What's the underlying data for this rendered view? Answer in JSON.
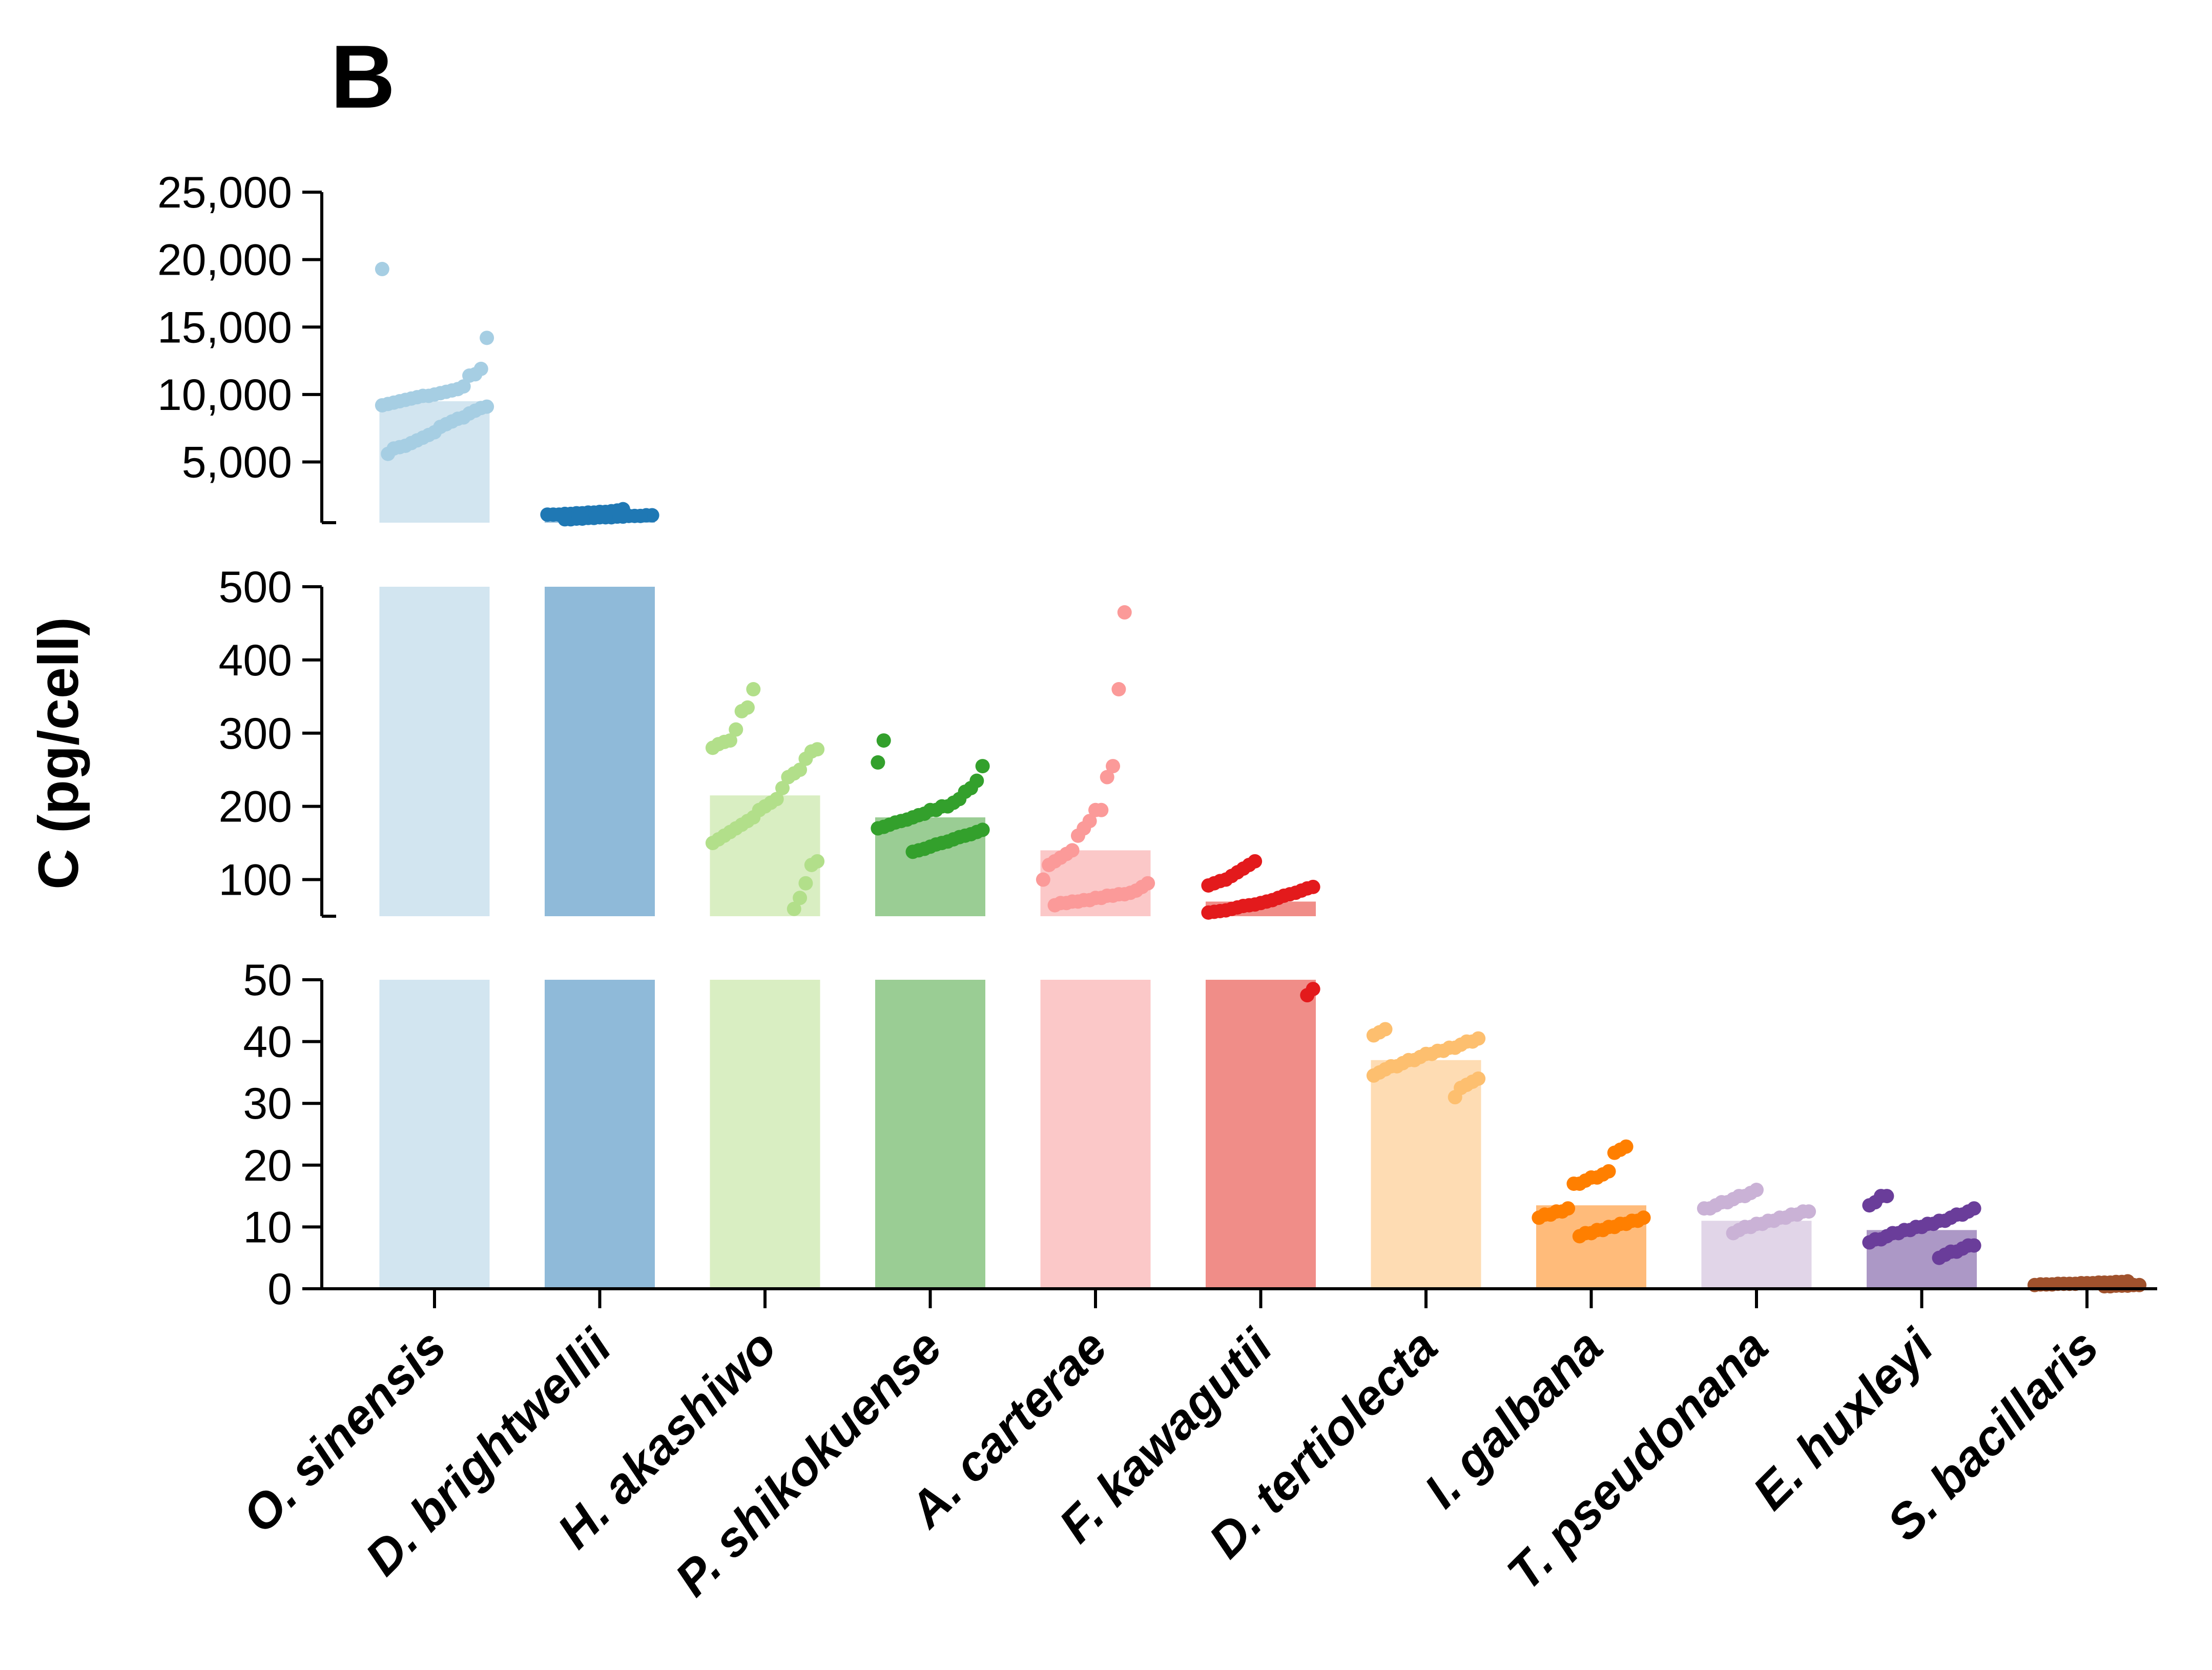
{
  "panel_label": "B",
  "chart_data": {
    "type": "bar",
    "title": "",
    "xlabel": "",
    "ylabel": "C (pg/cell)",
    "broken_axis": true,
    "segments": [
      {
        "range": [
          50,
          500
        ],
        "ticks": [
          100,
          200,
          300,
          400,
          500
        ],
        "tick_labels": [
          "100",
          "200",
          "300",
          "400",
          "500"
        ]
      },
      {
        "range": [
          500,
          25000
        ],
        "ticks": [
          5000,
          10000,
          15000,
          20000,
          25000
        ],
        "tick_labels": [
          "5,000",
          "10,000",
          "15,000",
          "20,000",
          "25,000"
        ]
      }
    ],
    "base_segment": {
      "range": [
        0,
        50
      ],
      "ticks": [
        0,
        10,
        20,
        30,
        40,
        50
      ],
      "tick_labels": [
        "0",
        "10",
        "20",
        "30",
        "40",
        "50"
      ]
    },
    "categories": [
      "O. sinensis",
      "D. brightwellii",
      "H. akashiwo",
      "P. shikokuense",
      "A. carterae",
      "F. kawagutii",
      "D. tertiolecta",
      "I. galbana",
      "T. pseudonana",
      "E. huxleyi",
      "S. bacillaris"
    ],
    "values": [
      9500,
      1100,
      215,
      185,
      140,
      70,
      37,
      13.5,
      11,
      9.5,
      0.8
    ],
    "bar_colors": [
      "#d2e5f0",
      "#8fbad9",
      "#d9eec2",
      "#9acd94",
      "#fbc8c8",
      "#f08d88",
      "#fedcb3",
      "#ffbb7a",
      "#e1d5e8",
      "#ac98c6",
      "#a0522d"
    ],
    "point_colors": [
      "#a6cee3",
      "#1f78b4",
      "#b2df8a",
      "#33a02c",
      "#fb9a99",
      "#e31a1c",
      "#fdbf6f",
      "#ff7f00",
      "#cab2d6",
      "#6a3d9a",
      "#a0522d"
    ],
    "points": [
      [
        19300,
        14200,
        11900,
        11500,
        11400,
        10600,
        10400,
        10300,
        10200,
        10100,
        10000,
        9900,
        9900,
        9800,
        9700,
        9600,
        9500,
        9400,
        9300,
        9200,
        9100,
        9000,
        8800,
        8600,
        8300,
        8200,
        8000,
        7800,
        7600,
        7200,
        7000,
        6800,
        6600,
        6400,
        6200,
        6100,
        6000,
        5600
      ],
      [
        1500,
        1400,
        1350,
        1300,
        1300,
        1250,
        1250,
        1200,
        1200,
        1150,
        1150,
        1100,
        1100,
        1100,
        1050,
        1050,
        1000,
        1000,
        1000,
        950,
        950,
        900,
        900,
        900,
        850,
        850,
        800,
        800,
        750,
        750
      ],
      [
        360,
        335,
        330,
        305,
        290,
        288,
        285,
        280,
        278,
        275,
        265,
        250,
        245,
        240,
        225,
        210,
        205,
        200,
        195,
        185,
        180,
        175,
        170,
        165,
        160,
        155,
        150,
        125,
        120,
        95,
        75,
        60
      ],
      [
        290,
        260,
        255,
        235,
        225,
        220,
        210,
        205,
        200,
        200,
        195,
        195,
        190,
        188,
        185,
        182,
        180,
        178,
        175,
        172,
        170,
        168,
        165,
        162,
        160,
        158,
        155,
        152,
        150,
        148,
        145,
        142,
        140,
        138
      ],
      [
        465,
        360,
        255,
        240,
        195,
        195,
        180,
        170,
        160,
        140,
        135,
        130,
        125,
        120,
        100,
        95,
        90,
        85,
        82,
        80,
        80,
        78,
        78,
        75,
        75,
        72,
        72,
        70,
        70,
        68,
        68,
        65
      ],
      [
        125,
        120,
        115,
        110,
        105,
        100,
        98,
        95,
        92,
        90,
        88,
        85,
        82,
        80,
        78,
        75,
        72,
        70,
        68,
        66,
        65,
        64,
        62,
        60,
        58,
        57,
        56,
        55,
        48.5,
        47.5
      ],
      [
        42,
        41.5,
        41,
        40.5,
        40,
        40,
        39.5,
        39,
        39,
        38.5,
        38.5,
        38,
        38,
        37.5,
        37,
        37,
        36.5,
        36,
        36,
        35.5,
        35,
        34.5,
        34,
        33.5,
        33,
        32.5,
        31
      ],
      [
        23,
        22.5,
        22,
        19,
        18.5,
        18,
        18,
        17.5,
        17,
        17,
        13,
        12.5,
        12.5,
        12,
        12,
        11.5,
        11.5,
        11,
        11,
        10.5,
        10.5,
        10,
        10,
        9.5,
        9.5,
        9,
        9,
        8.5
      ],
      [
        16,
        15.5,
        15,
        15,
        14.5,
        14,
        14,
        13.5,
        13,
        13,
        12.5,
        12.5,
        12,
        12,
        11.5,
        11.5,
        11,
        11,
        10.5,
        10.5,
        10,
        10,
        9.5,
        9
      ],
      [
        15,
        15,
        14,
        13.5,
        13,
        12.5,
        12,
        12,
        11.5,
        11,
        11,
        10.5,
        10.5,
        10,
        10,
        9.5,
        9.5,
        9,
        9,
        8.5,
        8,
        8,
        7.5,
        7,
        7,
        6.5,
        6,
        6,
        5.5,
        5
      ],
      [
        1.2,
        1.1,
        1.1,
        1.0,
        1.0,
        1.0,
        0.9,
        0.9,
        0.9,
        0.8,
        0.8,
        0.8,
        0.8,
        0.7,
        0.7,
        0.7,
        0.6,
        0.6,
        0.6,
        0.5,
        0.5,
        0.5,
        0.4,
        0.4
      ]
    ]
  }
}
